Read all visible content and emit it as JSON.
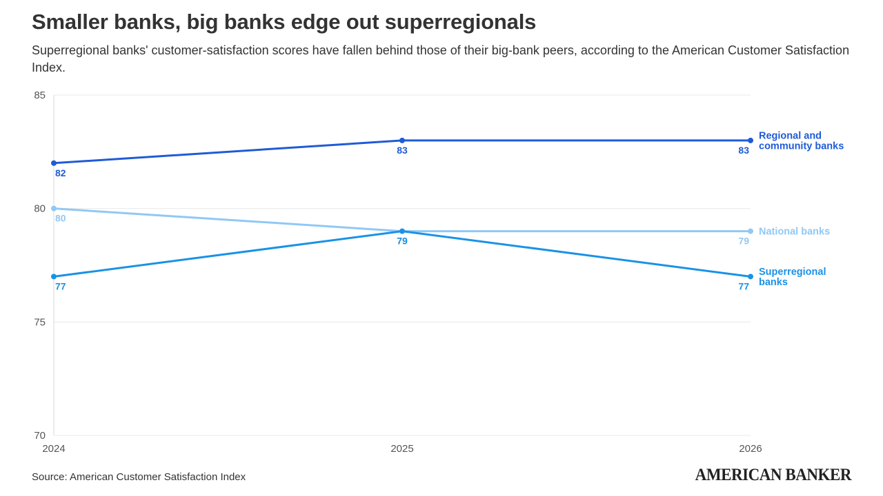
{
  "header": {
    "title": "Smaller banks, big banks edge out superregionals",
    "subtitle": "Superregional banks' customer-satisfaction scores have fallen behind those of their big-bank peers, according to the American Customer Satisfaction Index."
  },
  "footer": {
    "source": "Source: American Customer Satisfaction Index",
    "logo_text": "AMERICAN BANKER"
  },
  "chart_data": {
    "type": "line",
    "title": "Smaller banks, big banks edge out superregionals",
    "xlabel": "",
    "ylabel": "",
    "categories": [
      "2024",
      "2025",
      "2026"
    ],
    "ylim": [
      70,
      85
    ],
    "yticks": [
      "70",
      "75",
      "80",
      "85"
    ],
    "grid": true,
    "legend": "right, direct labels at line ends",
    "series": [
      {
        "name": "Regional and community banks",
        "label_lines": [
          "Regional and",
          "community banks"
        ],
        "values": [
          82,
          83,
          83
        ],
        "color": "#1f5bd6"
      },
      {
        "name": "National banks",
        "label_lines": [
          "National banks"
        ],
        "values": [
          80,
          79,
          79
        ],
        "color": "#90c8f5"
      },
      {
        "name": "Superregional banks",
        "label_lines": [
          "Superregional",
          "banks"
        ],
        "values": [
          77,
          79,
          77
        ],
        "color": "#1a92e6"
      }
    ]
  }
}
